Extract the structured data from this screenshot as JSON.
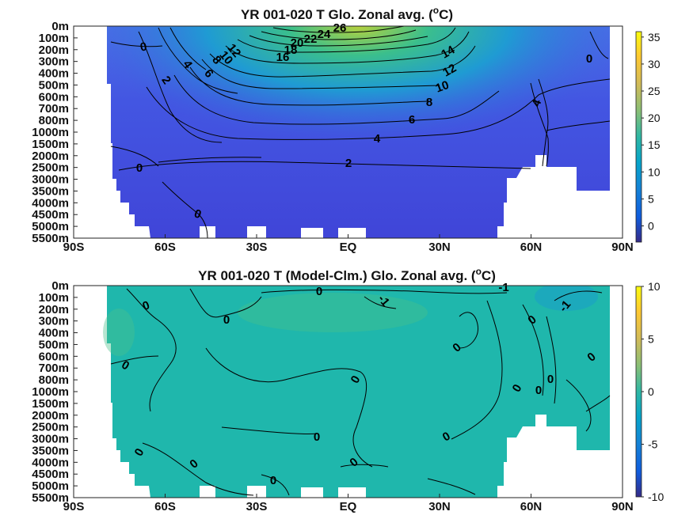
{
  "chart_data": [
    {
      "type": "heatmap",
      "title": "YR 001-020 T Glo. Zonal avg. (",
      "title_super": "o",
      "title_tail": "C)",
      "x_ticks": [
        "90S",
        "60S",
        "30S",
        "EQ",
        "30N",
        "60N",
        "90N"
      ],
      "x_values": [
        -90,
        -60,
        -30,
        0,
        30,
        60,
        90
      ],
      "y_ticks": [
        "0m",
        "100m",
        "200m",
        "300m",
        "400m",
        "500m",
        "600m",
        "700m",
        "800m",
        "1000m",
        "1500m",
        "2000m",
        "2500m",
        "3000m",
        "3500m",
        "4000m",
        "4500m",
        "5000m",
        "5500m"
      ],
      "colorbar_ticks": [
        "35",
        "30",
        "25",
        "20",
        "15",
        "10",
        "5",
        "0"
      ],
      "colorbar_range": [
        -3,
        36
      ],
      "contour_labels": [
        "0",
        "0",
        "0",
        "0",
        "2",
        "2",
        "4",
        "4",
        "4",
        "6",
        "6",
        "8",
        "8",
        "10",
        "10",
        "12",
        "12",
        "14",
        "16",
        "18",
        "20",
        "22",
        "24",
        "26"
      ],
      "xlim": [
        -90,
        90
      ],
      "ylim": [
        0,
        5500
      ],
      "colormap": "parula"
    },
    {
      "type": "heatmap",
      "title": "YR 001-020 T (Model-Clm.) Glo. Zonal avg. (",
      "title_super": "o",
      "title_tail": "C)",
      "x_ticks": [
        "90S",
        "60S",
        "30S",
        "EQ",
        "30N",
        "60N",
        "90N"
      ],
      "x_values": [
        -90,
        -60,
        -30,
        0,
        30,
        60,
        90
      ],
      "y_ticks": [
        "0m",
        "100m",
        "200m",
        "300m",
        "400m",
        "500m",
        "600m",
        "700m",
        "800m",
        "1000m",
        "1500m",
        "2000m",
        "2500m",
        "3000m",
        "3500m",
        "4000m",
        "4500m",
        "5000m",
        "5500m"
      ],
      "colorbar_ticks": [
        "10",
        "5",
        "0",
        "-5",
        "-10"
      ],
      "colorbar_range": [
        -10,
        10
      ],
      "contour_labels": [
        "0",
        "0",
        "0",
        "0",
        "0",
        "0",
        "0",
        "0",
        "0",
        "0",
        "0",
        "0",
        "0",
        "0",
        "0",
        "0",
        "0",
        "-1",
        "-1",
        "-1"
      ],
      "xlim": [
        -90,
        90
      ],
      "ylim": [
        0,
        5500
      ],
      "colormap": "parula"
    }
  ]
}
